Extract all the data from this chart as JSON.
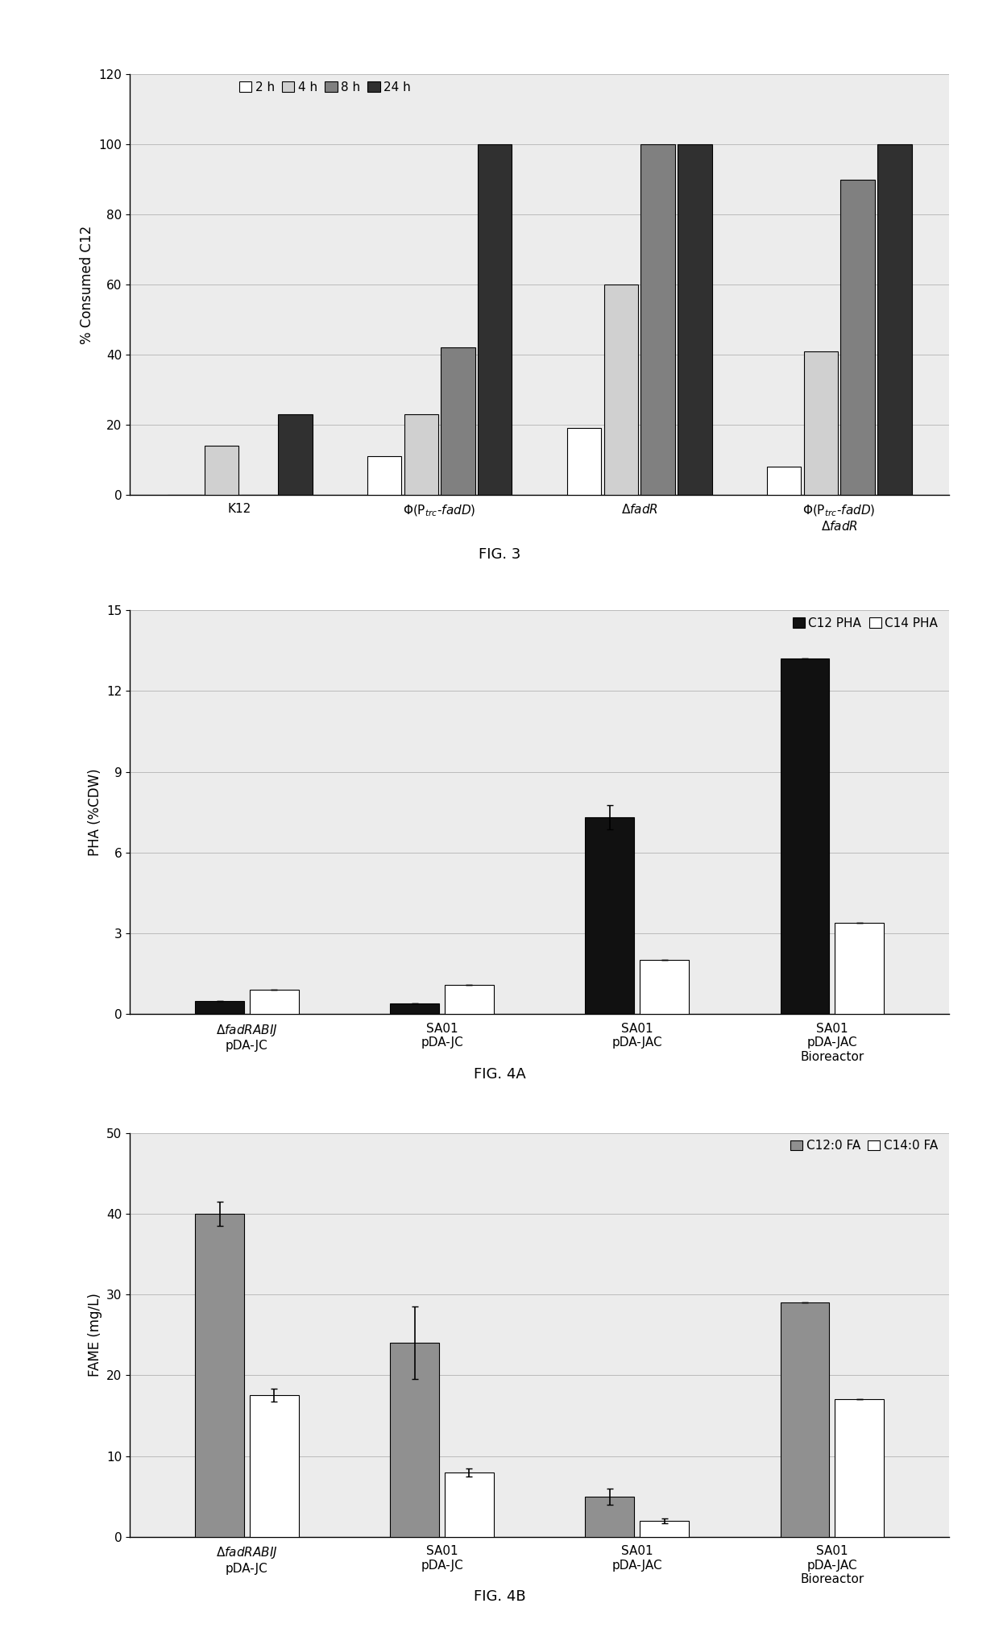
{
  "fig3": {
    "times": [
      "2 h",
      "4 h",
      "8 h",
      "24 h"
    ],
    "colors": [
      "#ffffff",
      "#d0d0d0",
      "#808080",
      "#303030"
    ],
    "cat_keys": [
      "K12",
      "Phi_trc_fadD",
      "delta_fadR",
      "Phi_trc_fadD_delta_fadR"
    ],
    "values": {
      "K12": [
        0,
        14,
        0,
        23
      ],
      "Phi_trc_fadD": [
        11,
        23,
        42,
        100
      ],
      "delta_fadR": [
        19,
        60,
        100,
        100
      ],
      "Phi_trc_fadD_delta_fadR": [
        8,
        41,
        90,
        100
      ]
    },
    "ylabel": "% Consumed C12",
    "ylim": [
      0,
      120
    ],
    "yticks": [
      0,
      20,
      40,
      60,
      80,
      100,
      120
    ],
    "fig_label": "FIG. 3"
  },
  "fig4a": {
    "series": [
      "C12 PHA",
      "C14 PHA"
    ],
    "colors": [
      "#111111",
      "#ffffff"
    ],
    "values": {
      "C12 PHA": [
        0.5,
        0.4,
        7.3,
        13.2
      ],
      "C14 PHA": [
        0.9,
        1.1,
        2.0,
        3.4
      ]
    },
    "errors": {
      "C12 PHA": [
        0.0,
        0.0,
        0.45,
        0.0
      ],
      "C14 PHA": [
        0.0,
        0.0,
        0.0,
        0.0
      ]
    },
    "ylabel": "PHA (%CDW)",
    "ylim": [
      0,
      15
    ],
    "yticks": [
      0,
      3,
      6,
      9,
      12,
      15
    ],
    "fig_label": "FIG. 4A"
  },
  "fig4b": {
    "series": [
      "C12:0 FA",
      "C14:0 FA"
    ],
    "colors": [
      "#909090",
      "#ffffff"
    ],
    "values": {
      "C12:0 FA": [
        40.0,
        24.0,
        5.0,
        29.0
      ],
      "C14:0 FA": [
        17.5,
        8.0,
        2.0,
        17.0
      ]
    },
    "errors": {
      "C12:0 FA": [
        1.5,
        4.5,
        1.0,
        0.0
      ],
      "C14:0 FA": [
        0.8,
        0.5,
        0.3,
        0.0
      ]
    },
    "ylabel": "FAME (mg/L)",
    "ylim": [
      0,
      50
    ],
    "yticks": [
      0,
      10,
      20,
      30,
      40,
      50
    ],
    "fig_label": "FIG. 4B"
  },
  "bar_edge_color": "#000000",
  "grid_color": "#bbbbbb",
  "bg_color": "#ececec"
}
